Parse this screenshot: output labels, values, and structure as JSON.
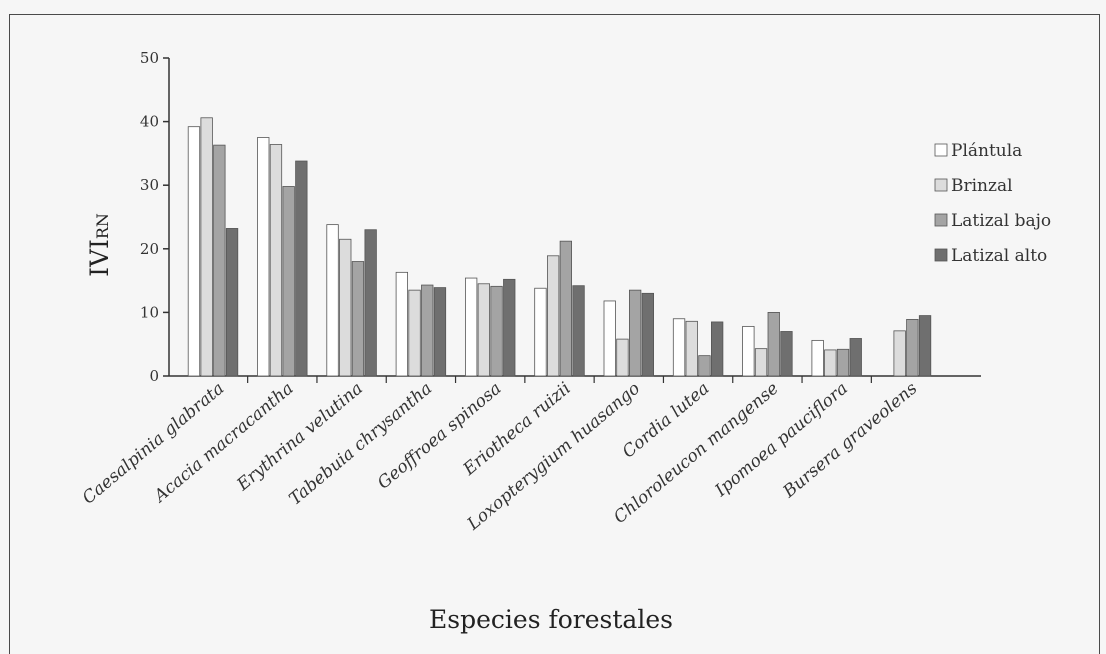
{
  "chart_data": {
    "type": "bar",
    "title": "",
    "xlabel": "Especies forestales",
    "ylabel_main": "IVI",
    "ylabel_sub": "RN",
    "ylim": [
      0,
      50
    ],
    "yticks": [
      0,
      10,
      20,
      30,
      40,
      50
    ],
    "legend_position": "right",
    "grid": false,
    "categories": [
      "Caesalpinia glabrata",
      "Acacia macracantha",
      "Erythrina velutina",
      "Tabebuia chrysantha",
      "Geoffroea spinosa",
      "Eriotheca ruizii",
      "Loxopterygium huasango",
      "Cordia lutea",
      "Chloroleucon mangense",
      "Ipomoea pauciflora",
      "Bursera graveolens"
    ],
    "series": [
      {
        "name": "Plántula",
        "color": "#ffffff",
        "values": [
          39.2,
          37.5,
          23.8,
          16.3,
          15.4,
          13.8,
          11.8,
          9.0,
          7.8,
          5.6,
          0
        ]
      },
      {
        "name": "Brinzal",
        "color": "#dcdcdc",
        "values": [
          40.6,
          36.4,
          21.5,
          13.5,
          14.5,
          18.9,
          5.8,
          8.6,
          4.3,
          4.1,
          7.1
        ]
      },
      {
        "name": "Latizal bajo",
        "color": "#a4a4a4",
        "values": [
          36.3,
          29.8,
          18.0,
          14.3,
          14.1,
          21.2,
          13.5,
          3.2,
          10.0,
          4.2,
          8.9
        ]
      },
      {
        "name": "Latizal alto",
        "color": "#6f6f6f",
        "values": [
          23.2,
          33.8,
          23.0,
          13.9,
          15.2,
          14.2,
          13.0,
          8.5,
          7.0,
          5.9,
          9.5
        ]
      }
    ]
  }
}
